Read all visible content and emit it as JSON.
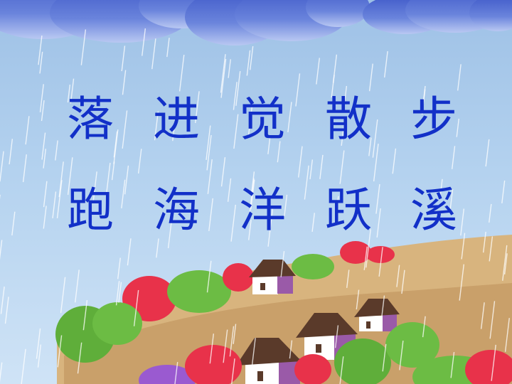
{
  "rows": [
    [
      "落",
      "进",
      "觉",
      "散",
      "步"
    ],
    [
      "跑",
      "海",
      "洋",
      "跃",
      "溪"
    ]
  ],
  "colors": {
    "character_text": "#1230c8",
    "sky_top": "#9ec1e6",
    "sky_bottom": "#cfe3f6",
    "cloud": "#5f78d8",
    "hill": "#d6b07a",
    "bush_green": "#5fae3a",
    "bush_red": "#e8324a",
    "roof": "#5a3a2a",
    "house_wall": "#ffffff",
    "house_side": "#9a5aa8"
  },
  "scene": {
    "icons": [
      "cloud-icon",
      "rain-icon",
      "hill-icon",
      "house-icon",
      "bush-icon"
    ]
  }
}
